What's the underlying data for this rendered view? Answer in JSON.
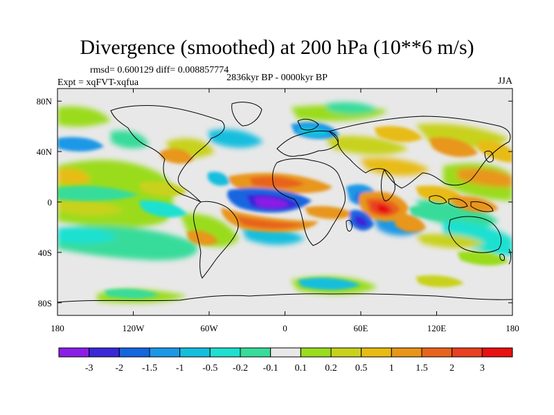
{
  "title": "Divergence (smoothed) at 200 hPa (10**6 m/s)",
  "stats": "rmsd= 0.600129 diff= 0.008857774",
  "experiment": "Expt = xqFVT-xqfua",
  "period": "2836kyr BP - 0000kyr BP",
  "season": "JJA",
  "chart_data": {
    "type": "heatmap",
    "projection": "cylindrical-equidistant",
    "x_range": [
      -180,
      180
    ],
    "y_range": [
      -90,
      90
    ],
    "x_ticks": [
      {
        "value": -180,
        "label": "180"
      },
      {
        "value": -120,
        "label": "120W"
      },
      {
        "value": -60,
        "label": "60W"
      },
      {
        "value": 0,
        "label": "0"
      },
      {
        "value": 60,
        "label": "60E"
      },
      {
        "value": 120,
        "label": "120E"
      },
      {
        "value": 180,
        "label": "180"
      }
    ],
    "y_ticks": [
      {
        "value": 80,
        "label": "80N"
      },
      {
        "value": 40,
        "label": "40N"
      },
      {
        "value": 0,
        "label": "0"
      },
      {
        "value": -40,
        "label": "40S"
      },
      {
        "value": -80,
        "label": "80S"
      }
    ],
    "colorbar": {
      "labels": [
        "-3",
        "-2",
        "-1.5",
        "-1",
        "-0.5",
        "-0.2",
        "-0.1",
        "0.1",
        "0.2",
        "0.5",
        "1",
        "1.5",
        "2",
        "3"
      ],
      "colors": [
        "#8a1ee6",
        "#3a28d8",
        "#1466e0",
        "#1c98e6",
        "#14bede",
        "#1ee0d0",
        "#38dc9a",
        "#e8e8e8",
        "#9adc1e",
        "#c8d21c",
        "#e8bc14",
        "#e8961a",
        "#e8641c",
        "#e84020",
        "#e81010"
      ]
    },
    "features": [
      {
        "name": "strong negative",
        "lon": -12,
        "lat": -2,
        "value": -3
      },
      {
        "name": "strong positive",
        "lon": 65,
        "lat": 2,
        "value": 3
      },
      {
        "name": "positive band north",
        "lon": 0,
        "lat": 12,
        "value": 1.5
      },
      {
        "name": "positive band south",
        "lon": -5,
        "lat": -18,
        "value": 1.5
      },
      {
        "name": "negative",
        "lon": 55,
        "lat": -10,
        "value": -1.5
      }
    ]
  }
}
